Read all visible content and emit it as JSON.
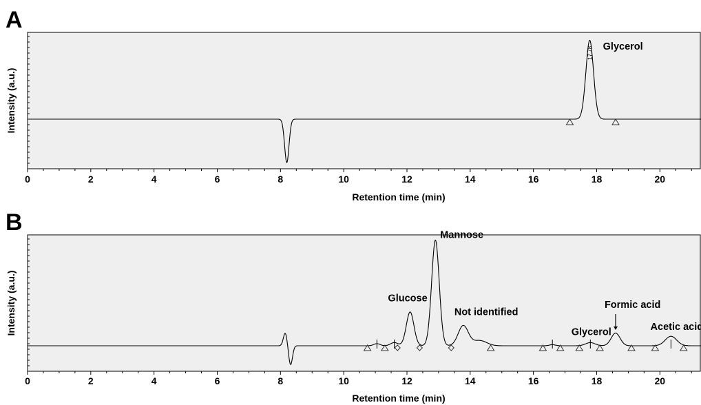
{
  "chart_data": [
    {
      "panel": "A",
      "type": "line",
      "xlabel": "Retention time (min)",
      "ylabel": "Intensity (a.u.)",
      "xlim": [
        0,
        21.3
      ],
      "ylim": [
        -0.57,
        1.1
      ],
      "xticks": [
        "0",
        "2",
        "4",
        "6",
        "8",
        "10",
        "12",
        "14",
        "16",
        "18",
        "20"
      ],
      "peaks": [
        {
          "rt": 8.2,
          "height": -0.55,
          "width": 0.07
        },
        {
          "rt": 17.78,
          "height": 1.0,
          "width": 0.12
        }
      ],
      "annotations": [
        {
          "text": "Glycerol",
          "x": 18.2,
          "y": 0.88
        }
      ],
      "peak_label": "17.78",
      "markers": [
        {
          "shape": "triangle",
          "x": 17.15
        },
        {
          "shape": "triangle",
          "x": 18.6
        }
      ]
    },
    {
      "panel": "B",
      "type": "line",
      "xlabel": "Retention time (min)",
      "ylabel": "Intensity (a.u.)",
      "xlim": [
        0,
        21.3
      ],
      "ylim": [
        -0.35,
        1.05
      ],
      "xticks": [
        "0",
        "2",
        "4",
        "6",
        "8",
        "10",
        "12",
        "14",
        "16",
        "18",
        "20"
      ],
      "peaks": [
        {
          "rt": 8.15,
          "height": 0.12,
          "width": 0.06
        },
        {
          "rt": 8.32,
          "height": -0.18,
          "width": 0.06
        },
        {
          "rt": 11.05,
          "height": 0.02,
          "width": 0.1
        },
        {
          "rt": 11.6,
          "height": 0.03,
          "width": 0.12
        },
        {
          "rt": 12.1,
          "height": 0.32,
          "width": 0.12
        },
        {
          "rt": 12.9,
          "height": 1.0,
          "width": 0.12
        },
        {
          "rt": 13.78,
          "height": 0.19,
          "width": 0.16
        },
        {
          "rt": 14.3,
          "height": 0.05,
          "width": 0.22
        },
        {
          "rt": 16.6,
          "height": 0.01,
          "width": 0.1
        },
        {
          "rt": 17.8,
          "height": 0.03,
          "width": 0.15
        },
        {
          "rt": 18.6,
          "height": 0.12,
          "width": 0.14
        },
        {
          "rt": 20.35,
          "height": 0.09,
          "width": 0.18
        }
      ],
      "annotations": [
        {
          "text": "Mannose",
          "x": 13.05,
          "y": 1.02
        },
        {
          "text": "Glucose",
          "x": 11.4,
          "y": 0.42
        },
        {
          "text": "Not identified",
          "x": 13.5,
          "y": 0.29
        },
        {
          "text": "Glycerol",
          "x": 17.2,
          "y": 0.1
        },
        {
          "text": "Formic acid",
          "x": 18.25,
          "y": 0.36
        },
        {
          "text": "Acetic acid",
          "x": 19.7,
          "y": 0.15
        }
      ],
      "arrow": {
        "x": 18.6,
        "y_from": 0.3,
        "y_to": 0.15
      },
      "markers": [
        {
          "shape": "triangle",
          "x": 10.75
        },
        {
          "shape": "triangle",
          "x": 11.3
        },
        {
          "shape": "diamond",
          "x": 11.7
        },
        {
          "shape": "diamond",
          "x": 12.4
        },
        {
          "shape": "diamond",
          "x": 13.4
        },
        {
          "shape": "triangle",
          "x": 14.65
        },
        {
          "shape": "triangle",
          "x": 16.3
        },
        {
          "shape": "triangle",
          "x": 16.85
        },
        {
          "shape": "triangle",
          "x": 17.45
        },
        {
          "shape": "triangle",
          "x": 18.1
        },
        {
          "shape": "triangle",
          "x": 19.1
        },
        {
          "shape": "triangle",
          "x": 19.85
        },
        {
          "shape": "triangle",
          "x": 20.75
        }
      ]
    }
  ]
}
